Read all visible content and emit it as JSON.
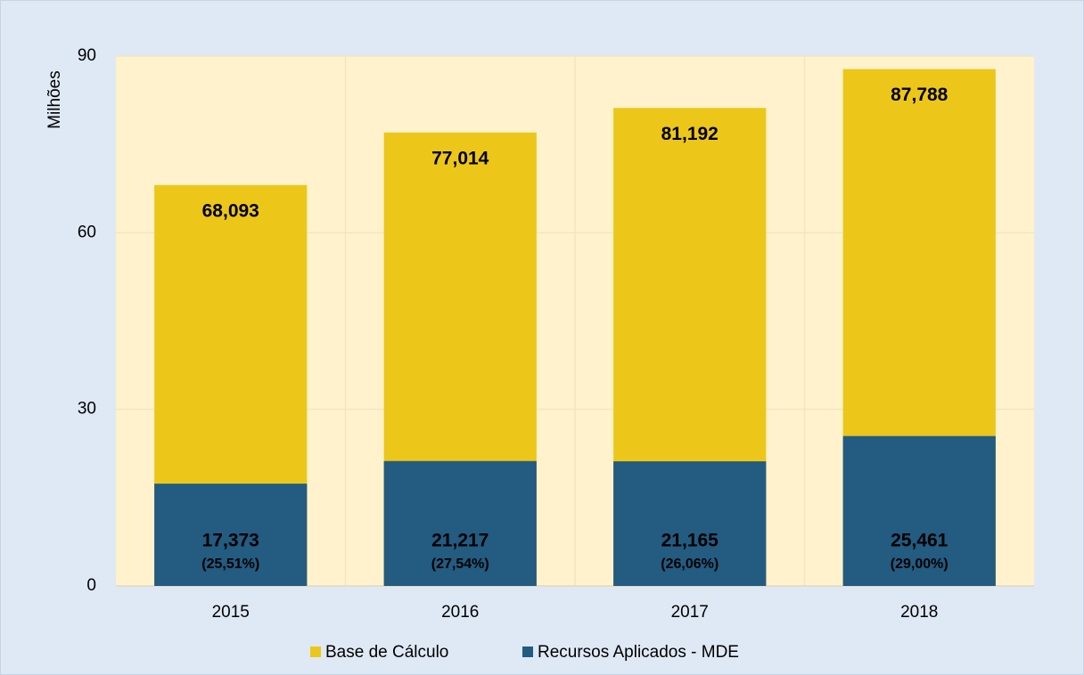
{
  "chart_data": {
    "type": "bar",
    "bar_mode": "overlap",
    "y_label": "Milhões",
    "categories": [
      "2015",
      "2016",
      "2017",
      "2018"
    ],
    "series": [
      {
        "name": "Base de Cálculo",
        "color": "#ecc71a",
        "values": [
          68.093,
          77.014,
          81.192,
          87.788
        ],
        "value_labels": [
          "68,093",
          "77,014",
          "81,192",
          "87,788"
        ]
      },
      {
        "name": "Recursos Aplicados - MDE",
        "color": "#235b81",
        "values": [
          17.373,
          21.217,
          21.165,
          25.461
        ],
        "value_labels": [
          "17,373",
          "21,217",
          "21,165",
          "25,461"
        ],
        "shares": [
          "(25,51%)",
          "(27,54%)",
          "(26,06%)",
          "(29,00%)"
        ]
      }
    ],
    "ylim": [
      0,
      90
    ],
    "yticks": [
      0,
      30,
      60,
      90
    ],
    "grid": true
  }
}
